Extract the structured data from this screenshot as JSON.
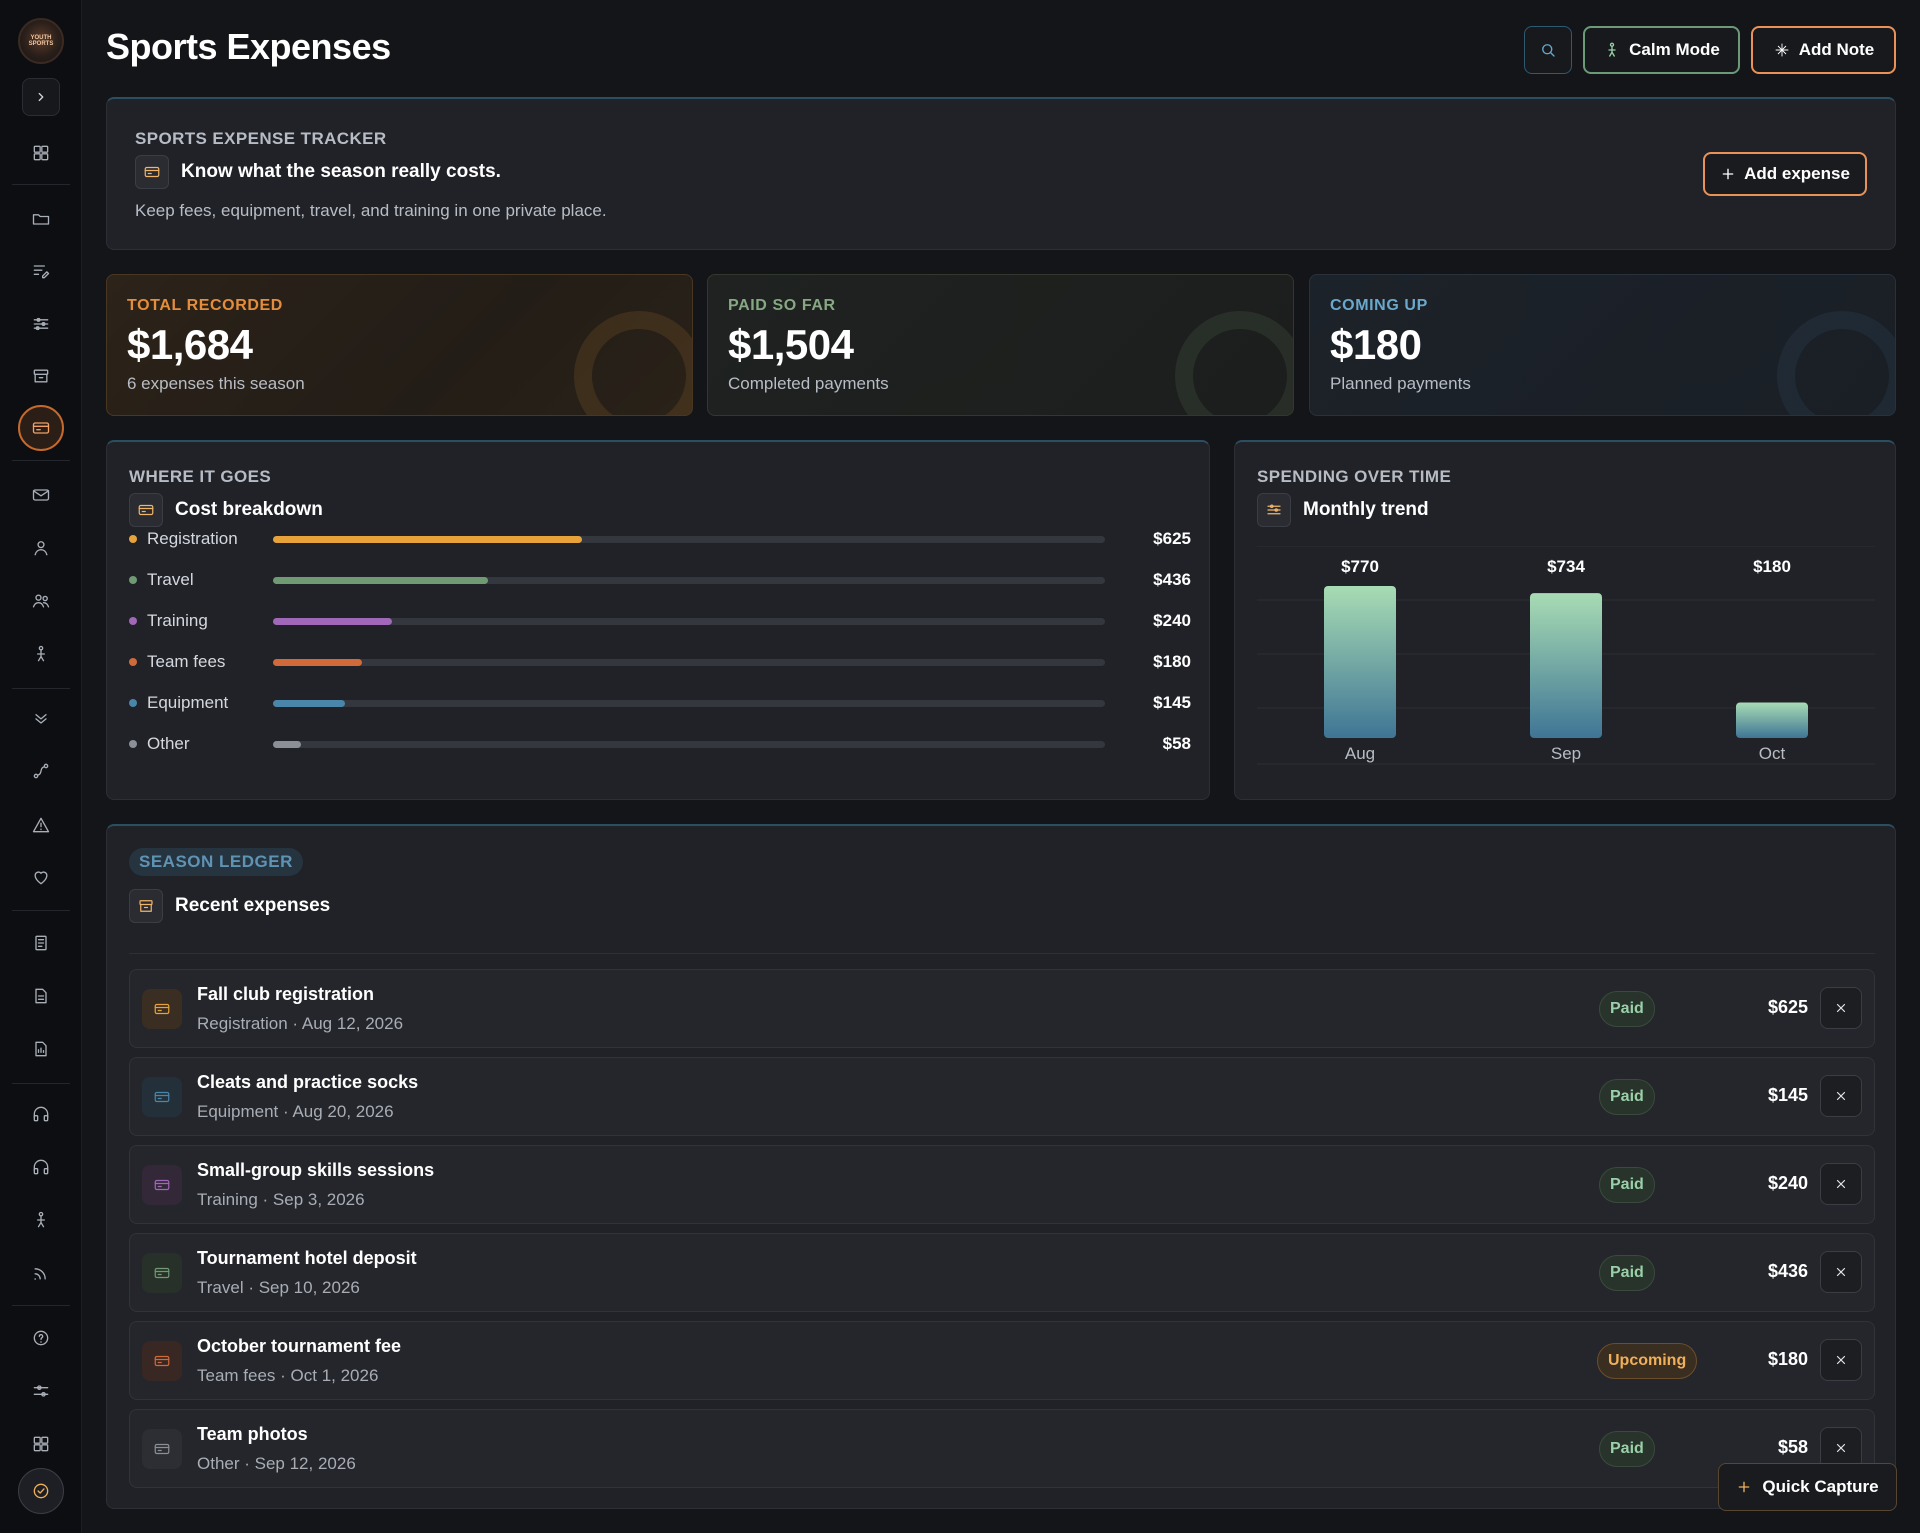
{
  "header": {
    "title": "Sports Expenses",
    "calm_label": "Calm Mode",
    "note_label": "Add Note"
  },
  "sidebar": {
    "logo_text": "YOUTH SPORTS"
  },
  "tracker": {
    "eyebrow": "Sports Expense Tracker",
    "title": "Know what the season really costs.",
    "subtitle": "Keep fees, equipment, travel, and training in one private place.",
    "add_label": "Add expense"
  },
  "stats": {
    "total": {
      "label": "Total recorded",
      "value": "$1,684",
      "sub": "6 expenses this season"
    },
    "paid": {
      "label": "Paid so far",
      "value": "$1,504",
      "sub": "Completed payments"
    },
    "upcoming": {
      "label": "Coming up",
      "value": "$180",
      "sub": "Planned payments"
    }
  },
  "breakdown": {
    "eyebrow": "Where it goes",
    "title": "Cost breakdown",
    "items": [
      {
        "name": "Registration",
        "amount": "$625",
        "fraction": 0.371,
        "color": "#e8a23a"
      },
      {
        "name": "Travel",
        "amount": "$436",
        "fraction": 0.259,
        "color": "#6f9a72"
      },
      {
        "name": "Training",
        "amount": "$240",
        "fraction": 0.143,
        "color": "#a167b8"
      },
      {
        "name": "Team fees",
        "amount": "$180",
        "fraction": 0.107,
        "color": "#d06a3a"
      },
      {
        "name": "Equipment",
        "amount": "$145",
        "fraction": 0.086,
        "color": "#4a86aa"
      },
      {
        "name": "Other",
        "amount": "$58",
        "fraction": 0.034,
        "color": "#8a8f98"
      }
    ]
  },
  "trend": {
    "eyebrow": "Spending over time",
    "title": "Monthly trend"
  },
  "chart_data": {
    "type": "bar",
    "title": "Monthly trend",
    "categories": [
      "Aug",
      "Sep",
      "Oct"
    ],
    "values": [
      770,
      734,
      180
    ],
    "value_labels": [
      "$770",
      "$734",
      "$180"
    ],
    "ylim": [
      0,
      770
    ],
    "grid": true
  },
  "ledger": {
    "chip": "Season ledger",
    "title": "Recent expenses",
    "rows": [
      {
        "title": "Fall club registration",
        "sub": "Registration · Aug 12, 2026",
        "status": "Paid",
        "amount": "$625",
        "icon_color": "#e8a23a",
        "icon_bg": "#3a2e22"
      },
      {
        "title": "Cleats and practice socks",
        "sub": "Equipment · Aug 20, 2026",
        "status": "Paid",
        "amount": "$145",
        "icon_color": "#4a86aa",
        "icon_bg": "#243039"
      },
      {
        "title": "Small-group skills sessions",
        "sub": "Training · Sep 3, 2026",
        "status": "Paid",
        "amount": "$240",
        "icon_color": "#a167b8",
        "icon_bg": "#322838"
      },
      {
        "title": "Tournament hotel deposit",
        "sub": "Travel · Sep 10, 2026",
        "status": "Paid",
        "amount": "$436",
        "icon_color": "#6f9a72",
        "icon_bg": "#28302a"
      },
      {
        "title": "October tournament fee",
        "sub": "Team fees · Oct 1, 2026",
        "status": "Upcoming",
        "amount": "$180",
        "icon_color": "#d06a3a",
        "icon_bg": "#382722"
      },
      {
        "title": "Team photos",
        "sub": "Other · Sep 12, 2026",
        "status": "Paid",
        "amount": "$58",
        "icon_color": "#8a8f98",
        "icon_bg": "#2c2e33"
      }
    ]
  },
  "quick_capture_label": "Quick Capture"
}
